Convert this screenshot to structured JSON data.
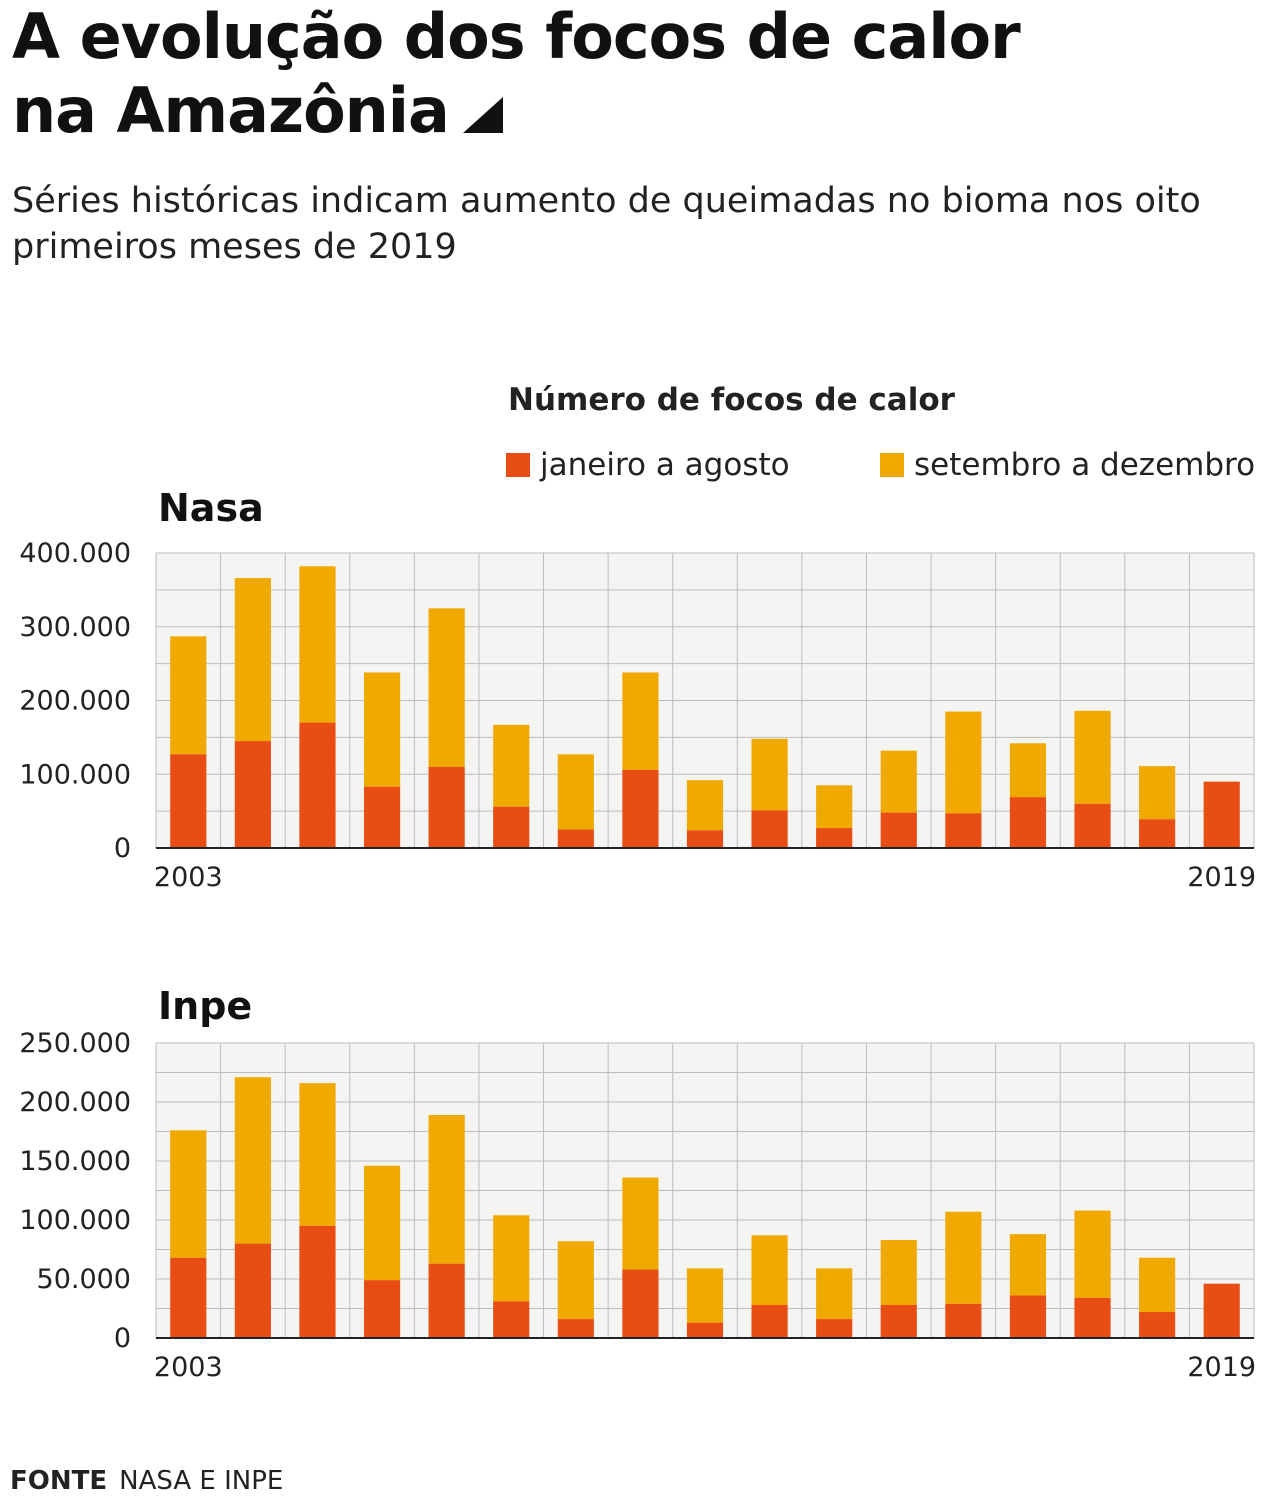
{
  "header": {
    "title_line1": "A evolução dos focos de calor",
    "title_line2": "na Amazônia",
    "subtitle_line1": "Séries históricas indicam aumento de queimadas no bioma nos oito",
    "subtitle_line2": "primeiros meses de 2019"
  },
  "legend": {
    "title": "Número de focos de calor",
    "items": [
      {
        "label": "janeiro a agosto",
        "color": "#e84e14"
      },
      {
        "label": "setembro a dezembro",
        "color": "#f0a900"
      }
    ]
  },
  "source": {
    "label": "FONTE",
    "text": "NASA E INPE"
  },
  "colors": {
    "grid_bg": "#f4f4f2",
    "grid_line": "#bdbdbd",
    "bar_jan_ago": "#e84e14",
    "bar_set_dez": "#f0a900"
  },
  "chart_data": [
    {
      "type": "bar",
      "stacked": true,
      "title": "Nasa",
      "x_first_label": "2003",
      "x_last_label": "2019",
      "ylim": [
        0,
        400000
      ],
      "y_ticks": [
        "0",
        "100.000",
        "200.000",
        "300.000",
        "400.000"
      ],
      "y_tick_values": [
        0,
        100000,
        200000,
        300000,
        400000
      ],
      "grid": true,
      "categories": [
        "2003",
        "2004",
        "2005",
        "2006",
        "2007",
        "2008",
        "2009",
        "2010",
        "2011",
        "2012",
        "2013",
        "2014",
        "2015",
        "2016",
        "2017",
        "2018",
        "2019"
      ],
      "series": [
        {
          "name": "janeiro a agosto",
          "values": [
            127000,
            145000,
            170000,
            83000,
            110000,
            56000,
            25000,
            106000,
            24000,
            51000,
            27000,
            48000,
            47000,
            69000,
            60000,
            39000,
            90000
          ]
        },
        {
          "name": "setembro a dezembro",
          "values": [
            160000,
            221000,
            212000,
            155000,
            215000,
            111000,
            102000,
            132000,
            68000,
            97000,
            58000,
            84000,
            138000,
            73000,
            126000,
            72000,
            0
          ]
        }
      ]
    },
    {
      "type": "bar",
      "stacked": true,
      "title": "Inpe",
      "x_first_label": "2003",
      "x_last_label": "2019",
      "ylim": [
        0,
        250000
      ],
      "y_ticks": [
        "0",
        "50.000",
        "100.000",
        "150.000",
        "200.000",
        "250.000"
      ],
      "y_tick_values": [
        0,
        50000,
        100000,
        150000,
        200000,
        250000
      ],
      "grid": true,
      "categories": [
        "2003",
        "2004",
        "2005",
        "2006",
        "2007",
        "2008",
        "2009",
        "2010",
        "2011",
        "2012",
        "2013",
        "2014",
        "2015",
        "2016",
        "2017",
        "2018",
        "2019"
      ],
      "series": [
        {
          "name": "janeiro a agosto",
          "values": [
            68000,
            80000,
            95000,
            49000,
            63000,
            31000,
            16000,
            58000,
            13000,
            28000,
            16000,
            28000,
            29000,
            36000,
            34000,
            22000,
            46000
          ]
        },
        {
          "name": "setembro a dezembro",
          "values": [
            108000,
            141000,
            121000,
            97000,
            126000,
            73000,
            66000,
            78000,
            46000,
            59000,
            43000,
            55000,
            78000,
            52000,
            74000,
            46000,
            0
          ]
        }
      ]
    }
  ]
}
